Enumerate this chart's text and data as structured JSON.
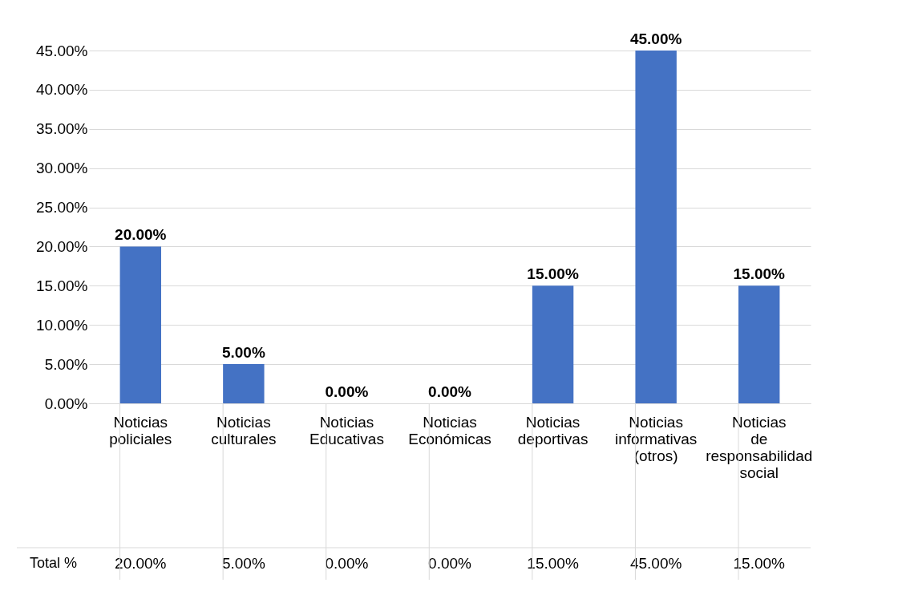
{
  "chart_data": {
    "type": "bar",
    "categories": [
      "Noticias policiales",
      "Noticias culturales",
      "Noticias Educativas",
      "Noticias Económicas",
      "Noticias deportivas",
      "Noticias informativas (otros)",
      "Noticias de responsabilidad social"
    ],
    "series": [
      {
        "name": "Total %",
        "color": "#4472c4",
        "values": [
          20,
          5,
          0,
          0,
          15,
          45,
          15
        ],
        "value_labels": [
          "20.00%",
          "5.00%",
          "0.00%",
          "0.00%",
          "15.00%",
          "45.00%",
          "15.00%"
        ]
      }
    ],
    "ylim": [
      0,
      45
    ],
    "yticks": [
      {
        "value": 0,
        "label": "0.00%"
      },
      {
        "value": 5,
        "label": "5.00%"
      },
      {
        "value": 10,
        "label": "10.00%"
      },
      {
        "value": 15,
        "label": "15.00%"
      },
      {
        "value": 20,
        "label": "20.00%"
      },
      {
        "value": 25,
        "label": "25.00%"
      },
      {
        "value": 30,
        "label": "30.00%"
      },
      {
        "value": 35,
        "label": "35.00%"
      },
      {
        "value": 40,
        "label": "40.00%"
      },
      {
        "value": 45,
        "label": "45.00%"
      }
    ],
    "grid": "y"
  }
}
